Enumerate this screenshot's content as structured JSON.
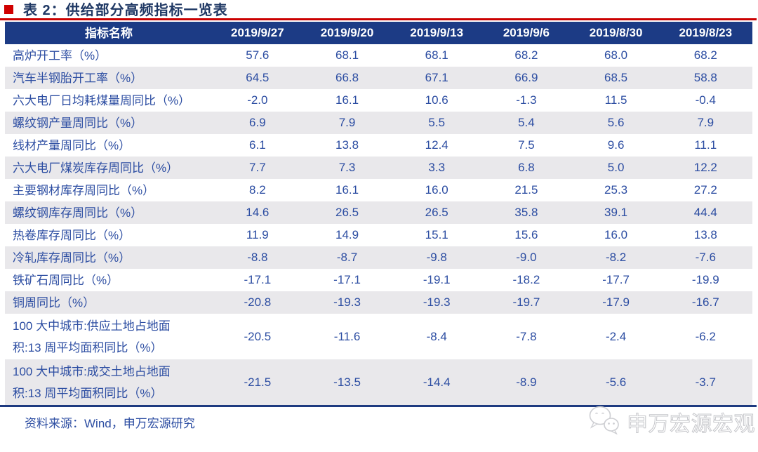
{
  "title": "表 2：供给部分高频指标一览表",
  "table": {
    "header": [
      "指标名称",
      "2019/9/27",
      "2019/9/20",
      "2019/9/13",
      "2019/9/6",
      "2019/8/30",
      "2019/8/23"
    ],
    "rows": [
      {
        "label": "高炉开工率（%）",
        "values": [
          "57.6",
          "68.1",
          "68.1",
          "68.2",
          "68.0",
          "68.2"
        ]
      },
      {
        "label": "汽车半钢胎开工率（%）",
        "values": [
          "64.5",
          "66.8",
          "67.1",
          "66.9",
          "68.5",
          "58.8"
        ]
      },
      {
        "label": "六大电厂日均耗煤量周同比（%）",
        "values": [
          "-2.0",
          "16.1",
          "10.6",
          "-1.3",
          "11.5",
          "-0.4"
        ]
      },
      {
        "label": "螺纹钢产量周同比（%）",
        "values": [
          "6.9",
          "7.9",
          "5.5",
          "5.4",
          "5.6",
          "7.9"
        ]
      },
      {
        "label": "线材产量周同比（%）",
        "values": [
          "6.1",
          "13.8",
          "12.4",
          "7.5",
          "9.6",
          "11.1"
        ]
      },
      {
        "label": "六大电厂煤炭库存周同比（%）",
        "values": [
          "7.7",
          "7.3",
          "3.3",
          "6.8",
          "5.0",
          "12.2"
        ]
      },
      {
        "label": "主要钢材库存周同比（%）",
        "values": [
          "8.2",
          "16.1",
          "16.0",
          "21.5",
          "25.3",
          "27.2"
        ]
      },
      {
        "label": "螺纹钢库存周同比（%）",
        "values": [
          "14.6",
          "26.5",
          "26.5",
          "35.8",
          "39.1",
          "44.4"
        ]
      },
      {
        "label": "热卷库存周同比（%）",
        "values": [
          "11.9",
          "14.9",
          "15.1",
          "15.6",
          "16.0",
          "13.8"
        ]
      },
      {
        "label": "冷轧库存周同比（%）",
        "values": [
          "-8.8",
          "-8.7",
          "-9.8",
          "-9.0",
          "-8.2",
          "-7.6"
        ]
      },
      {
        "label": "铁矿石周同比（%）",
        "values": [
          "-17.1",
          "-17.1",
          "-19.1",
          "-18.2",
          "-17.7",
          "-19.9"
        ]
      },
      {
        "label": "铜周同比（%）",
        "values": [
          "-20.8",
          "-19.3",
          "-19.3",
          "-19.7",
          "-17.9",
          "-16.7"
        ]
      },
      {
        "label": "100 大中城市:供应土地占地面\n积:13 周平均面积同比（%）",
        "tall": true,
        "values": [
          "-20.5",
          "-11.6",
          "-8.4",
          "-7.8",
          "-2.4",
          "-6.2"
        ]
      },
      {
        "label": "100 大中城市:成交土地占地面\n积:13 周平均面积同比（%）",
        "tall": true,
        "values": [
          "-21.5",
          "-13.5",
          "-14.4",
          "-8.9",
          "-5.6",
          "-3.7"
        ]
      }
    ]
  },
  "footer": {
    "source": "资料来源：Wind，申万宏源研究"
  },
  "watermark": {
    "icon": "wechat-icon",
    "text": "申万宏源宏观"
  },
  "colors": {
    "navy_header": "#1c3b85",
    "navy_title": "#1f3864",
    "text_blue": "#2c4da2",
    "stripe": "#e9e8eb",
    "red": "#cb0000"
  }
}
